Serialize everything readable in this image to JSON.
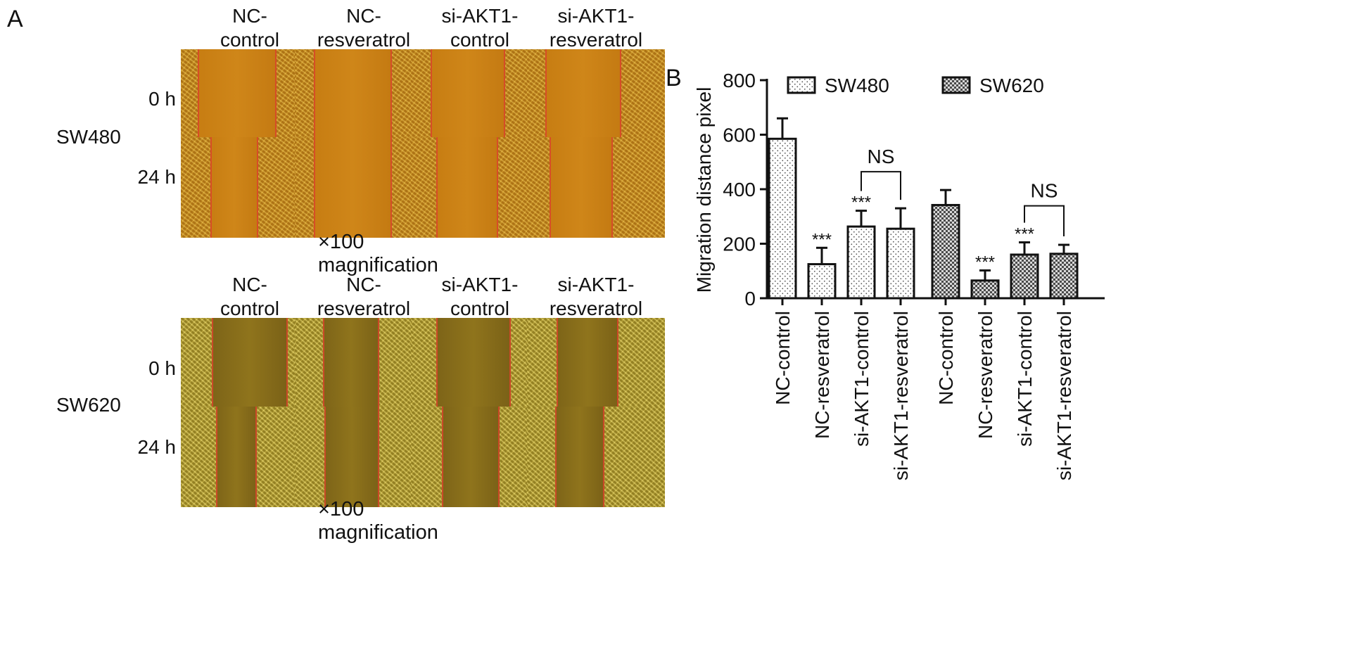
{
  "panel_a": {
    "label": "A",
    "magnification": "×100  magnification",
    "blocks": [
      {
        "cell_line": "SW480",
        "columns": [
          {
            "line1": "NC-",
            "line2": "control"
          },
          {
            "line1": "NC-",
            "line2": "resveratrol"
          },
          {
            "line1": "si-AKT1-",
            "line2": "control"
          },
          {
            "line1": "si-AKT1-",
            "line2": "resveratrol"
          }
        ],
        "rows": [
          "0 h",
          "24 h"
        ]
      },
      {
        "cell_line": "SW620",
        "columns": [
          {
            "line1": "NC-",
            "line2": "control"
          },
          {
            "line1": "NC-",
            "line2": "resveratrol"
          },
          {
            "line1": "si-AKT1-",
            "line2": "control"
          },
          {
            "line1": "si-AKT1-",
            "line2": "resveratrol"
          }
        ],
        "rows": [
          "0 h",
          "24 h"
        ]
      }
    ]
  },
  "panel_b": {
    "label": "B"
  },
  "chart_data": {
    "type": "bar",
    "categories": [
      "NC-control",
      "NC-resveratrol",
      "si-AKT1-control",
      "si-AKT1-resveratrol"
    ],
    "series": [
      {
        "name": "SW480",
        "values": [
          585,
          125,
          263,
          255
        ],
        "errors": [
          75,
          60,
          58,
          75
        ],
        "significance": [
          "",
          "***",
          "***",
          ""
        ]
      },
      {
        "name": "SW620",
        "values": [
          342,
          65,
          160,
          163
        ],
        "errors": [
          55,
          37,
          45,
          33
        ],
        "significance": [
          "",
          "***",
          "***",
          ""
        ]
      }
    ],
    "comparisons": [
      {
        "series": "SW480",
        "between": [
          2,
          3
        ],
        "label": "NS"
      },
      {
        "series": "SW620",
        "between": [
          2,
          3
        ],
        "label": "NS"
      }
    ],
    "title": "",
    "xlabel": "",
    "ylabel": "Migration distance pixel",
    "ylim": [
      0,
      800
    ],
    "yticks": [
      0,
      200,
      400,
      600,
      800
    ],
    "legend_position": "top",
    "grid": false
  }
}
